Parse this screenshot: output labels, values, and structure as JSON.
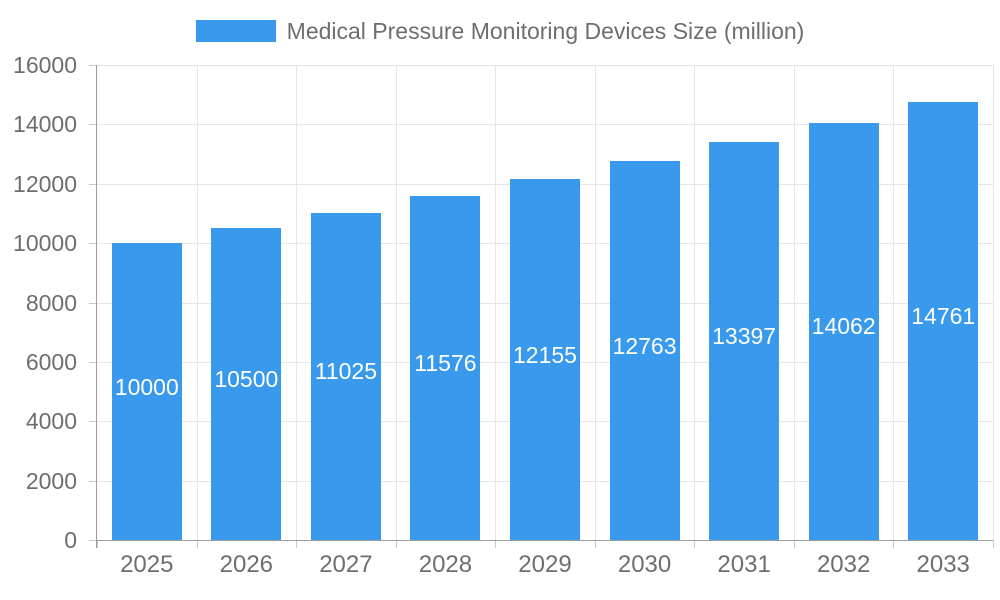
{
  "chart_data": {
    "type": "bar",
    "title": "Medical Pressure Monitoring Devices Size (million)",
    "categories": [
      "2025",
      "2026",
      "2027",
      "2028",
      "2029",
      "2030",
      "2031",
      "2032",
      "2033"
    ],
    "values": [
      10000,
      10500,
      11025,
      11576,
      12155,
      12763,
      13397,
      14062,
      14761
    ],
    "xlabel": "",
    "ylabel": "",
    "ylim": [
      0,
      16000
    ],
    "ytick_step": 2000,
    "grid": true,
    "legend_position": "top-center",
    "bar_color": "#3999EC",
    "value_label_color": "#FFFFFF",
    "axis_text_color": "#6E6E6E",
    "grid_color": "#E6E6E6",
    "axis_line_color": "#9B9B9B",
    "tick_color": "#C9C9C9"
  }
}
